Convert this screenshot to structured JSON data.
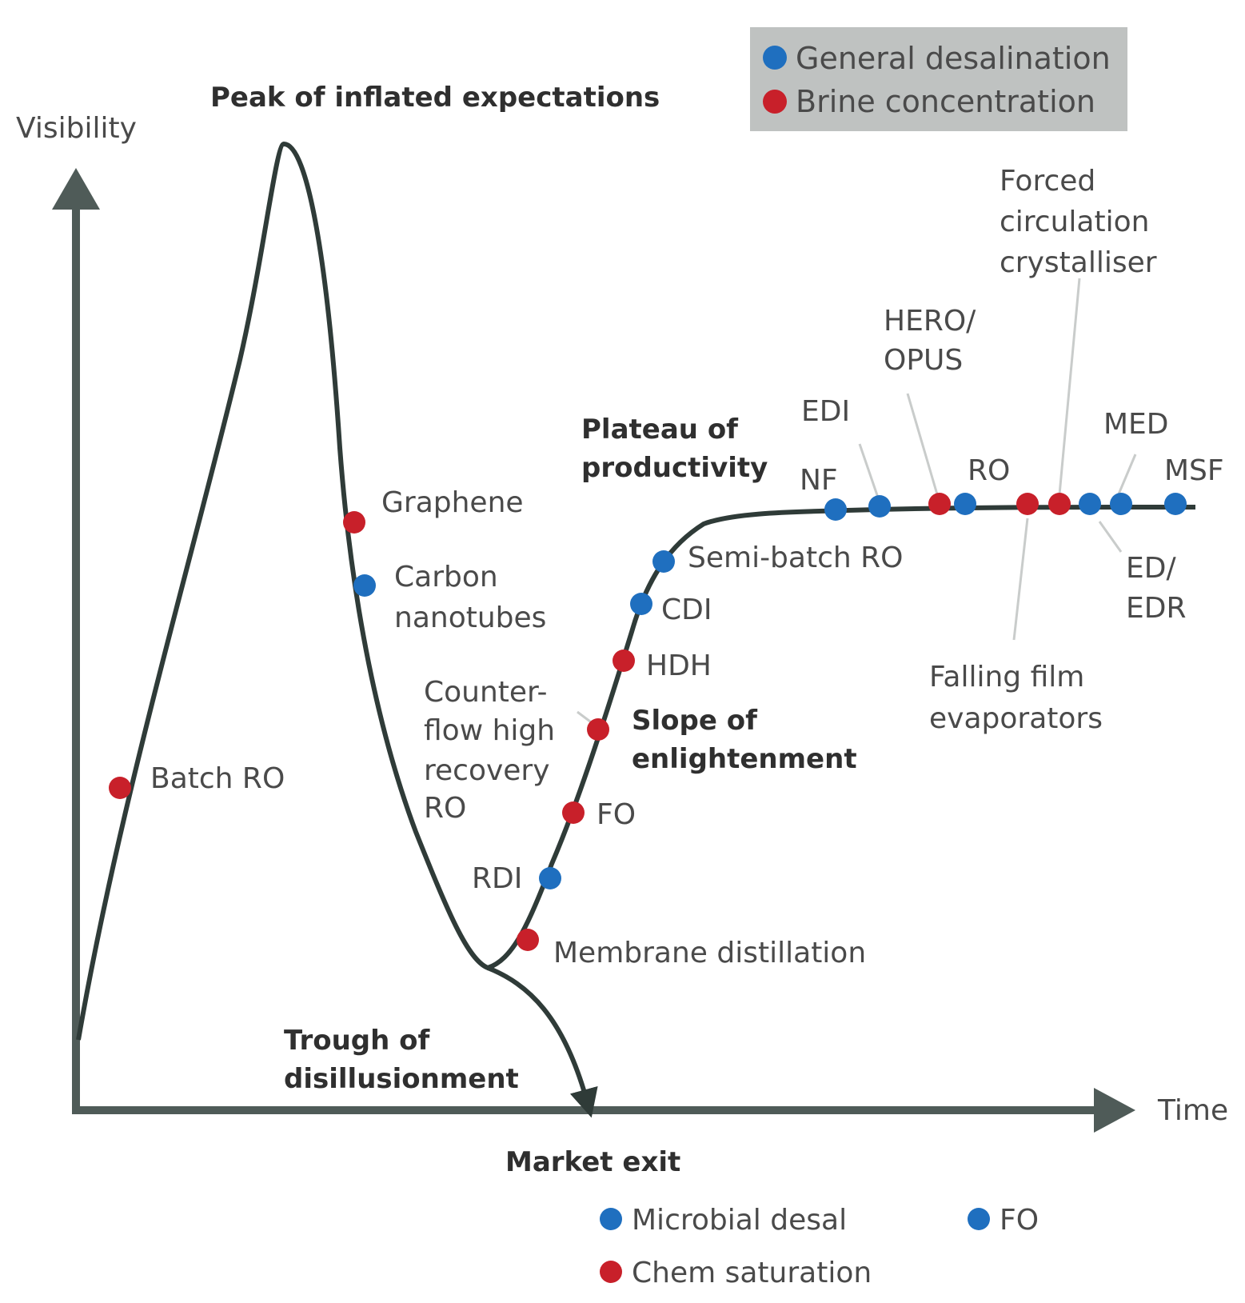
{
  "axes": {
    "y_label": "Visibility",
    "x_label": "Time"
  },
  "phases": {
    "peak": "Peak of inflated expectations",
    "trough": [
      "Trough of",
      "disillusionment"
    ],
    "slope": [
      "Slope of",
      "enlightenment"
    ],
    "plateau": [
      "Plateau of",
      "productivity"
    ],
    "market_exit": "Market exit"
  },
  "legend": {
    "general": "General desalination",
    "brine": "Brine concentration"
  },
  "colors": {
    "general": "#1f6fbf",
    "brine": "#c8202a",
    "curve": "#2f3b38",
    "legend_bg": "#bfc2c1"
  },
  "technologies": [
    {
      "name": "Batch RO",
      "label": [
        "Batch RO"
      ],
      "category": "brine"
    },
    {
      "name": "Graphene",
      "label": [
        "Graphene"
      ],
      "category": "brine"
    },
    {
      "name": "Carbon nanotubes",
      "label": [
        "Carbon",
        "nanotubes"
      ],
      "category": "general"
    },
    {
      "name": "Counter-flow high recovery RO",
      "label": [
        "Counter-",
        "flow high",
        "recovery",
        "RO"
      ],
      "category": "brine"
    },
    {
      "name": "FO",
      "label": [
        "FO"
      ],
      "category": "brine"
    },
    {
      "name": "RDI",
      "label": [
        "RDI"
      ],
      "category": "general"
    },
    {
      "name": "Membrane distillation",
      "label": [
        "Membrane distillation"
      ],
      "category": "brine"
    },
    {
      "name": "HDH",
      "label": [
        "HDH"
      ],
      "category": "brine"
    },
    {
      "name": "CDI",
      "label": [
        "CDI"
      ],
      "category": "general"
    },
    {
      "name": "Semi-batch RO",
      "label": [
        "Semi-batch RO"
      ],
      "category": "general"
    },
    {
      "name": "NF",
      "label": [
        "NF"
      ],
      "category": "general"
    },
    {
      "name": "EDI",
      "label": [
        "EDI"
      ],
      "category": "general"
    },
    {
      "name": "HERO/OPUS",
      "label": [
        "HERO/",
        "OPUS"
      ],
      "category": "brine"
    },
    {
      "name": "RO",
      "label": [
        "RO"
      ],
      "category": "general"
    },
    {
      "name": "Falling film evaporators",
      "label": [
        "Falling film",
        "evaporators"
      ],
      "category": "brine"
    },
    {
      "name": "Forced circulation crystalliser",
      "label": [
        "Forced",
        "circulation",
        "crystalliser"
      ],
      "category": "brine"
    },
    {
      "name": "ED/EDR",
      "label": [
        "ED/",
        "EDR"
      ],
      "category": "general"
    },
    {
      "name": "MED",
      "label": [
        "MED"
      ],
      "category": "general"
    },
    {
      "name": "MSF",
      "label": [
        "MSF"
      ],
      "category": "general"
    }
  ],
  "market_exit_items": [
    {
      "name": "Microbial desal",
      "category": "general"
    },
    {
      "name": "FO",
      "category": "general"
    },
    {
      "name": "Chem saturation",
      "category": "brine"
    }
  ]
}
